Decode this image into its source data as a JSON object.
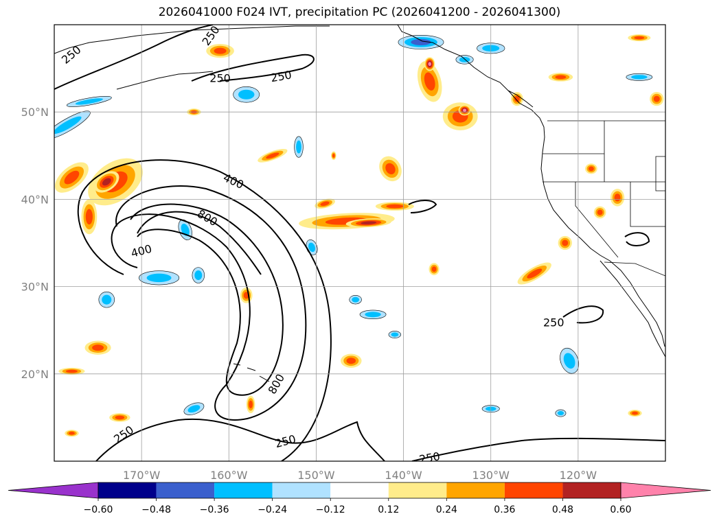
{
  "title": "2026041000 F024 IVT, precipitation PC (2026041200 - 2026041300)",
  "map": {
    "lon_range": [
      -180,
      -110
    ],
    "lat_range": [
      10,
      60
    ],
    "lon_ticks": [
      {
        "value": -170,
        "label": "170°W"
      },
      {
        "value": -160,
        "label": "160°W"
      },
      {
        "value": -150,
        "label": "150°W"
      },
      {
        "value": -140,
        "label": "140°W"
      },
      {
        "value": -130,
        "label": "130°W"
      },
      {
        "value": -120,
        "label": "120°W"
      }
    ],
    "lat_ticks": [
      {
        "value": 20,
        "label": "20°N"
      },
      {
        "value": 30,
        "label": "30°N"
      },
      {
        "value": 40,
        "label": "40°N"
      },
      {
        "value": 50,
        "label": "50°N"
      }
    ],
    "grid": true
  },
  "ivt_contours": {
    "levels": [
      250,
      400,
      800
    ],
    "labels": [
      {
        "text": "250",
        "lon": -178,
        "lat": 56.5,
        "rot": -40
      },
      {
        "text": "250",
        "lon": -162,
        "lat": 58.7,
        "rot": -55
      },
      {
        "text": "250",
        "lon": -161,
        "lat": 53.8,
        "rot": 0
      },
      {
        "text": "250",
        "lon": -154,
        "lat": 54.0,
        "rot": -10
      },
      {
        "text": "400",
        "lon": -159.5,
        "lat": 42.0,
        "rot": 25
      },
      {
        "text": "800",
        "lon": -162.5,
        "lat": 37.8,
        "rot": 30
      },
      {
        "text": "400",
        "lon": -170,
        "lat": 34.0,
        "rot": -15
      },
      {
        "text": "800",
        "lon": -154.5,
        "lat": 18.8,
        "rot": -60
      },
      {
        "text": "250",
        "lon": -172,
        "lat": 13.0,
        "rot": -35
      },
      {
        "text": "250",
        "lon": -153.5,
        "lat": 12.2,
        "rot": -15
      },
      {
        "text": "250",
        "lon": -137,
        "lat": 10.3,
        "rot": -10
      },
      {
        "text": "250",
        "lon": -122.8,
        "lat": 25.8,
        "rot": 0
      }
    ]
  },
  "precip_pc": {
    "colorbar": {
      "ticks": [
        "−0.60",
        "−0.48",
        "−0.36",
        "−0.24",
        "−0.12",
        "0.12",
        "0.24",
        "0.36",
        "0.48",
        "0.60"
      ],
      "colors": [
        "#9932cc",
        "#00008b",
        "#3a5fcd",
        "#00bfff",
        "#b0e2ff",
        "#ffffff",
        "#ffec8b",
        "#ffa500",
        "#ff4500",
        "#b22222",
        "#ff82ab"
      ],
      "extend": "both"
    },
    "blobs": [
      {
        "lon": -173.0,
        "lat": 42.0,
        "rx": 3.5,
        "ry": 2.2,
        "rot": -35,
        "level": 3
      },
      {
        "lon": -174.0,
        "lat": 42.0,
        "rx": 1.6,
        "ry": 1.0,
        "rot": -35,
        "level": 4
      },
      {
        "lon": -176.0,
        "lat": 38.0,
        "rx": 0.9,
        "ry": 2.0,
        "rot": 0,
        "level": 3
      },
      {
        "lon": -178.0,
        "lat": 42.5,
        "rx": 2.3,
        "ry": 1.2,
        "rot": -40,
        "level": 3
      },
      {
        "lon": -178.5,
        "lat": 48.5,
        "rx": 3.0,
        "ry": 0.7,
        "rot": -30,
        "level": -2
      },
      {
        "lon": -176.0,
        "lat": 51.2,
        "rx": 2.6,
        "ry": 0.4,
        "rot": -10,
        "level": -2
      },
      {
        "lon": -168.0,
        "lat": 31.0,
        "rx": 2.3,
        "ry": 0.8,
        "rot": 0,
        "level": -2
      },
      {
        "lon": -165.0,
        "lat": 36.5,
        "rx": 0.7,
        "ry": 1.2,
        "rot": -20,
        "level": -2
      },
      {
        "lon": -163.5,
        "lat": 31.3,
        "rx": 0.7,
        "ry": 0.9,
        "rot": 0,
        "level": -2
      },
      {
        "lon": -174.0,
        "lat": 28.5,
        "rx": 0.9,
        "ry": 0.9,
        "rot": 0,
        "level": -2
      },
      {
        "lon": -158.0,
        "lat": 29.0,
        "rx": 0.7,
        "ry": 0.9,
        "rot": 0,
        "level": 3
      },
      {
        "lon": -161.0,
        "lat": 57.0,
        "rx": 1.6,
        "ry": 0.8,
        "rot": 0,
        "level": 3
      },
      {
        "lon": -158.0,
        "lat": 52.0,
        "rx": 1.5,
        "ry": 0.9,
        "rot": 0,
        "level": -2
      },
      {
        "lon": -164.0,
        "lat": 50.0,
        "rx": 0.8,
        "ry": 0.4,
        "rot": 0,
        "level": 3
      },
      {
        "lon": -155.0,
        "lat": 45.0,
        "rx": 1.8,
        "ry": 0.5,
        "rot": -20,
        "level": 3
      },
      {
        "lon": -152.0,
        "lat": 46.0,
        "rx": 0.5,
        "ry": 1.2,
        "rot": 0,
        "level": -2
      },
      {
        "lon": -146.5,
        "lat": 37.5,
        "rx": 5.5,
        "ry": 0.9,
        "rot": -3,
        "level": 3
      },
      {
        "lon": -144.0,
        "lat": 37.3,
        "rx": 2.6,
        "ry": 0.5,
        "rot": -3,
        "level": 4
      },
      {
        "lon": -149.0,
        "lat": 39.5,
        "rx": 1.2,
        "ry": 0.5,
        "rot": -15,
        "level": 3
      },
      {
        "lon": -141.0,
        "lat": 39.2,
        "rx": 2.2,
        "ry": 0.5,
        "rot": 0,
        "level": 3
      },
      {
        "lon": -141.5,
        "lat": 43.5,
        "rx": 1.2,
        "ry": 1.5,
        "rot": -30,
        "level": 3
      },
      {
        "lon": -137.0,
        "lat": 53.5,
        "rx": 1.3,
        "ry": 2.4,
        "rot": -15,
        "level": 3
      },
      {
        "lon": -137.0,
        "lat": 55.5,
        "rx": 0.6,
        "ry": 0.8,
        "rot": 0,
        "level": 5
      },
      {
        "lon": -133.5,
        "lat": 49.5,
        "rx": 2.0,
        "ry": 1.6,
        "rot": 0,
        "level": 3
      },
      {
        "lon": -133.0,
        "lat": 50.2,
        "rx": 0.7,
        "ry": 0.6,
        "rot": 0,
        "level": 5
      },
      {
        "lon": -138.0,
        "lat": 58.0,
        "rx": 2.6,
        "ry": 0.8,
        "rot": 0,
        "level": -3
      },
      {
        "lon": -133.0,
        "lat": 56.0,
        "rx": 1.0,
        "ry": 0.5,
        "rot": 0,
        "level": -2
      },
      {
        "lon": -130.0,
        "lat": 57.3,
        "rx": 1.6,
        "ry": 0.6,
        "rot": 0,
        "level": -2
      },
      {
        "lon": -127.0,
        "lat": 51.5,
        "rx": 0.7,
        "ry": 0.8,
        "rot": 0,
        "level": 3
      },
      {
        "lon": -122.0,
        "lat": 54.0,
        "rx": 1.4,
        "ry": 0.5,
        "rot": 0,
        "level": 3
      },
      {
        "lon": -113.0,
        "lat": 54.0,
        "rx": 1.5,
        "ry": 0.4,
        "rot": 0,
        "level": -2
      },
      {
        "lon": -111.0,
        "lat": 51.5,
        "rx": 0.8,
        "ry": 0.8,
        "rot": 0,
        "level": 3
      },
      {
        "lon": -113.0,
        "lat": 58.5,
        "rx": 1.3,
        "ry": 0.4,
        "rot": 0,
        "level": 3
      },
      {
        "lon": -125.0,
        "lat": 31.5,
        "rx": 2.2,
        "ry": 0.7,
        "rot": -30,
        "level": 3
      },
      {
        "lon": -121.5,
        "lat": 35.0,
        "rx": 0.8,
        "ry": 0.8,
        "rot": 0,
        "level": 3
      },
      {
        "lon": -115.5,
        "lat": 40.2,
        "rx": 0.8,
        "ry": 1.0,
        "rot": 0,
        "level": 3
      },
      {
        "lon": -118.5,
        "lat": 43.5,
        "rx": 0.7,
        "ry": 0.6,
        "rot": 0,
        "level": 3
      },
      {
        "lon": -117.5,
        "lat": 38.5,
        "rx": 0.7,
        "ry": 0.7,
        "rot": 0,
        "level": 3
      },
      {
        "lon": -121.0,
        "lat": 21.5,
        "rx": 1.0,
        "ry": 1.5,
        "rot": -20,
        "level": -2
      },
      {
        "lon": -122.0,
        "lat": 15.5,
        "rx": 0.6,
        "ry": 0.4,
        "rot": 0,
        "level": -2
      },
      {
        "lon": -130.0,
        "lat": 16.0,
        "rx": 1.0,
        "ry": 0.4,
        "rot": 0,
        "level": -2
      },
      {
        "lon": -143.5,
        "lat": 26.8,
        "rx": 1.5,
        "ry": 0.5,
        "rot": 0,
        "level": -2
      },
      {
        "lon": -145.5,
        "lat": 28.5,
        "rx": 0.7,
        "ry": 0.5,
        "rot": 0,
        "level": -2
      },
      {
        "lon": -141.0,
        "lat": 24.5,
        "rx": 0.7,
        "ry": 0.4,
        "rot": 0,
        "level": -2
      },
      {
        "lon": -146.0,
        "lat": 21.5,
        "rx": 1.2,
        "ry": 0.8,
        "rot": 0,
        "level": 3
      },
      {
        "lon": -136.5,
        "lat": 32.0,
        "rx": 0.6,
        "ry": 0.7,
        "rot": 0,
        "level": 3
      },
      {
        "lon": -157.5,
        "lat": 16.5,
        "rx": 0.5,
        "ry": 1.0,
        "rot": 0,
        "level": 3
      },
      {
        "lon": -178.0,
        "lat": 20.3,
        "rx": 1.5,
        "ry": 0.4,
        "rot": 0,
        "level": 3
      },
      {
        "lon": -175.0,
        "lat": 23.0,
        "rx": 1.5,
        "ry": 0.8,
        "rot": 0,
        "level": 3
      },
      {
        "lon": -172.5,
        "lat": 15.0,
        "rx": 1.2,
        "ry": 0.5,
        "rot": 0,
        "level": 3
      },
      {
        "lon": -178.0,
        "lat": 13.2,
        "rx": 0.8,
        "ry": 0.4,
        "rot": 0,
        "level": 3
      },
      {
        "lon": -164.0,
        "lat": 16.0,
        "rx": 1.2,
        "ry": 0.6,
        "rot": -20,
        "level": -2
      },
      {
        "lon": -113.5,
        "lat": 15.5,
        "rx": 0.8,
        "ry": 0.4,
        "rot": 0,
        "level": 3
      },
      {
        "lon": -150.5,
        "lat": 34.5,
        "rx": 0.6,
        "ry": 0.9,
        "rot": -20,
        "level": -2
      },
      {
        "lon": -148.0,
        "lat": 45.0,
        "rx": 0.3,
        "ry": 0.5,
        "rot": 0,
        "level": 3
      }
    ]
  }
}
